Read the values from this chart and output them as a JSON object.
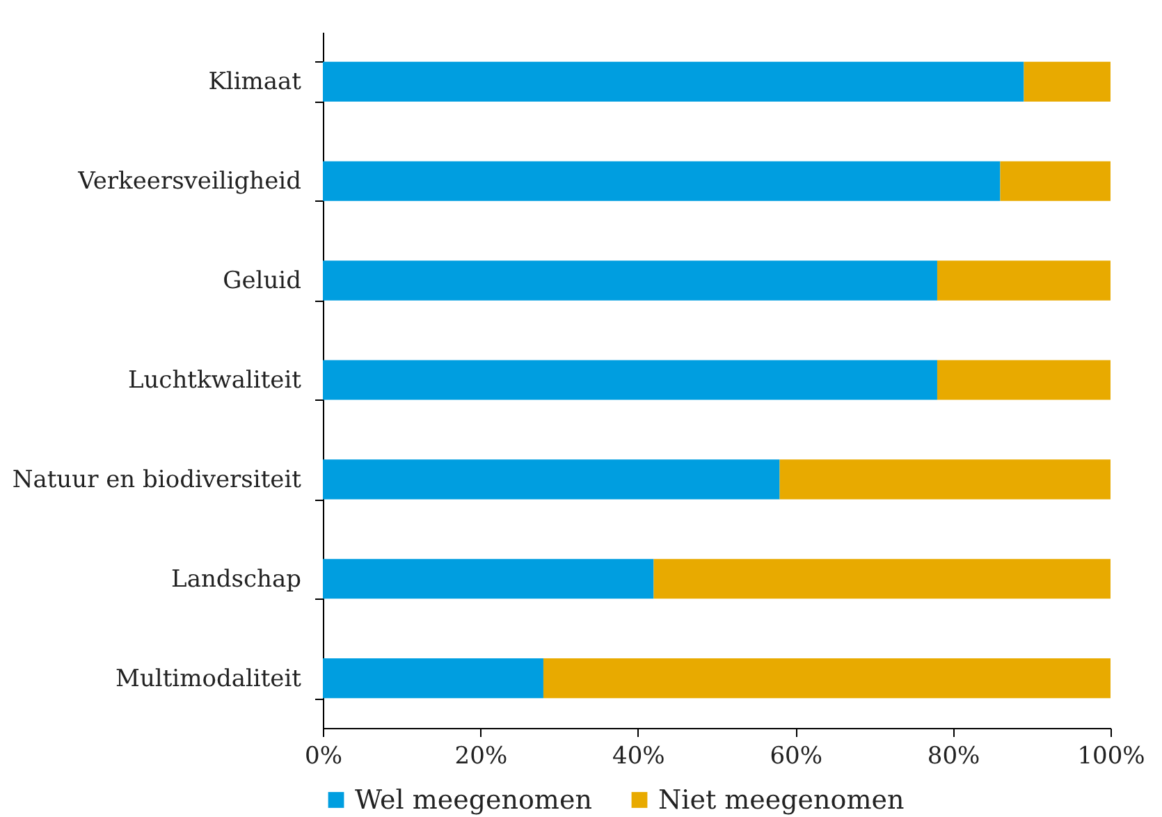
{
  "chart_data": {
    "type": "bar",
    "orientation": "horizontal",
    "stacked": true,
    "categories": [
      "Klimaat",
      "Verkeersveiligheid",
      "Geluid",
      "Luchtkwaliteit",
      "Natuur en biodiversiteit",
      "Landschap",
      "Multimodaliteit"
    ],
    "series": [
      {
        "name": "Wel meegenomen",
        "color": "#009ee0",
        "values": [
          89,
          86,
          78,
          78,
          58,
          42,
          28
        ]
      },
      {
        "name": "Niet meegenomen",
        "color": "#e8aa00",
        "values": [
          11,
          14,
          22,
          22,
          42,
          58,
          72
        ]
      }
    ],
    "xlim": [
      0,
      100
    ],
    "xticks": [
      {
        "value": 0,
        "label": "0%"
      },
      {
        "value": 20,
        "label": "20%"
      },
      {
        "value": 40,
        "label": "40%"
      },
      {
        "value": 60,
        "label": "60%"
      },
      {
        "value": 80,
        "label": "80%"
      },
      {
        "value": 100,
        "label": "100%"
      }
    ],
    "grid": false,
    "legend": "bottom"
  }
}
